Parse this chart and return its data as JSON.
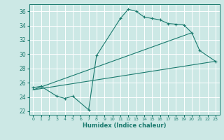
{
  "xlabel": "Humidex (Indice chaleur)",
  "bg_color": "#cce8e5",
  "grid_color": "#ffffff",
  "line_color": "#1a7a6e",
  "xlim": [
    -0.5,
    23.5
  ],
  "ylim": [
    21.5,
    37.0
  ],
  "yticks": [
    22,
    24,
    26,
    28,
    30,
    32,
    34,
    36
  ],
  "xticks": [
    0,
    1,
    2,
    3,
    4,
    5,
    6,
    7,
    8,
    9,
    10,
    11,
    12,
    13,
    14,
    15,
    16,
    17,
    18,
    19,
    20,
    21,
    22,
    23
  ],
  "segments": [
    {
      "x": [
        0,
        1,
        3,
        4,
        5,
        7,
        8,
        11,
        12,
        13,
        14,
        15,
        16,
        17,
        18,
        19,
        20,
        21,
        23
      ],
      "y": [
        25.3,
        25.5,
        24.1,
        23.8,
        24.1,
        22.2,
        29.8,
        35.0,
        36.3,
        36.0,
        35.2,
        35.0,
        34.8,
        34.3,
        34.2,
        34.1,
        33.0,
        30.5,
        29.0
      ],
      "marker": true
    },
    {
      "x": [
        0,
        23
      ],
      "y": [
        25.0,
        29.0
      ],
      "marker": false
    },
    {
      "x": [
        0,
        20
      ],
      "y": [
        25.0,
        33.0
      ],
      "marker": false
    }
  ]
}
